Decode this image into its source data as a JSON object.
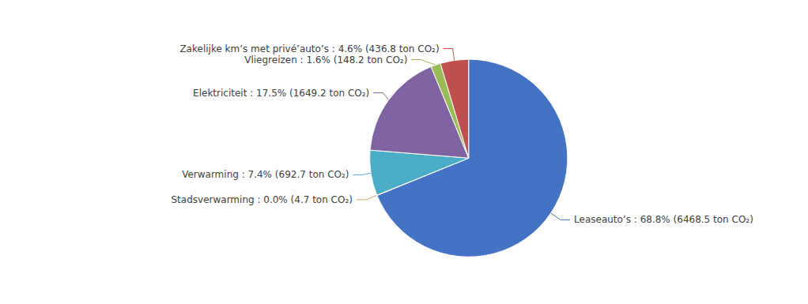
{
  "chart_data": {
    "type": "pie",
    "categories": [
      "Leaseauto’s",
      "Stadsverwarming",
      "Verwarming",
      "Elektriciteit",
      "Vliegreizen",
      "Zakelijke km’s met privé’auto’s"
    ],
    "values": [
      68.8,
      0.05,
      7.4,
      17.5,
      1.6,
      4.6
    ],
    "colors": [
      "#4472C4",
      "#C8A878",
      "#4BACC6",
      "#8064A2",
      "#9BBB59",
      "#C0504D"
    ],
    "annotations": [
      "Leaseauto’s : 68.8% (6468.5 ton CO₂)",
      "Stadsverwarming : 0.0% (4.7 ton CO₂)",
      "Verwarming : 7.4% (692.7 ton CO₂)",
      "Elektriciteit : 17.5% (1649.2 ton CO₂)",
      "Vliegreizen : 1.6% (148.2 ton CO₂)",
      "Zakelijke km’s met privé’auto’s : 4.6% (436.8 ton CO₂)"
    ]
  }
}
